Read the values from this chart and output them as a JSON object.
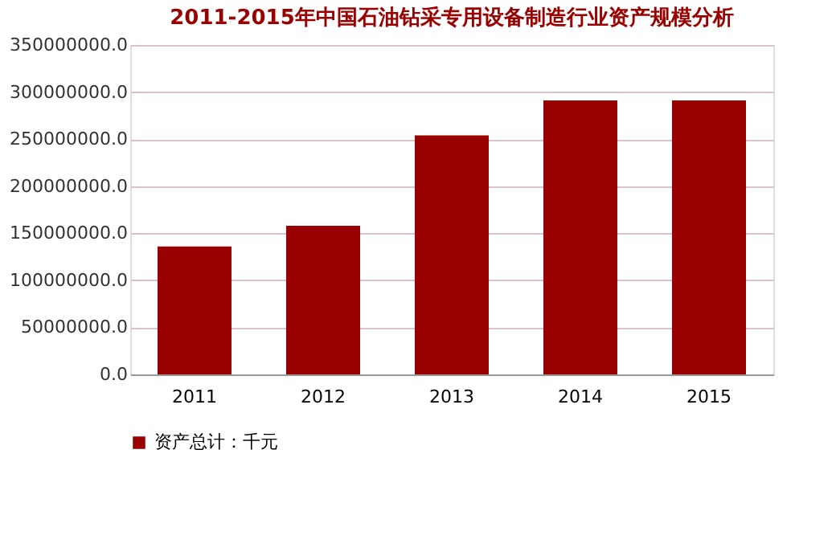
{
  "chart_data": {
    "type": "bar",
    "title": "2011-2015年中国石油钻采专用设备制造行业资产规模分析",
    "categories": [
      "2011",
      "2012",
      "2013",
      "2014",
      "2015"
    ],
    "series": [
      {
        "name": "资产总计：千元",
        "color": "#990000",
        "values": [
          136000000,
          158000000,
          254000000,
          291000000,
          291000000
        ]
      }
    ],
    "ylim": [
      0,
      350000000
    ],
    "yticks": [
      {
        "value": 0,
        "label": "0.0"
      },
      {
        "value": 50000000,
        "label": "50000000.0"
      },
      {
        "value": 100000000,
        "label": "100000000.0"
      },
      {
        "value": 150000000,
        "label": "150000000.0"
      },
      {
        "value": 200000000,
        "label": "200000000.0"
      },
      {
        "value": 250000000,
        "label": "250000000.0"
      },
      {
        "value": 300000000,
        "label": "300000000.0"
      },
      {
        "value": 350000000,
        "label": "350000000.0"
      }
    ],
    "grid": "y",
    "legend": "bottom"
  }
}
